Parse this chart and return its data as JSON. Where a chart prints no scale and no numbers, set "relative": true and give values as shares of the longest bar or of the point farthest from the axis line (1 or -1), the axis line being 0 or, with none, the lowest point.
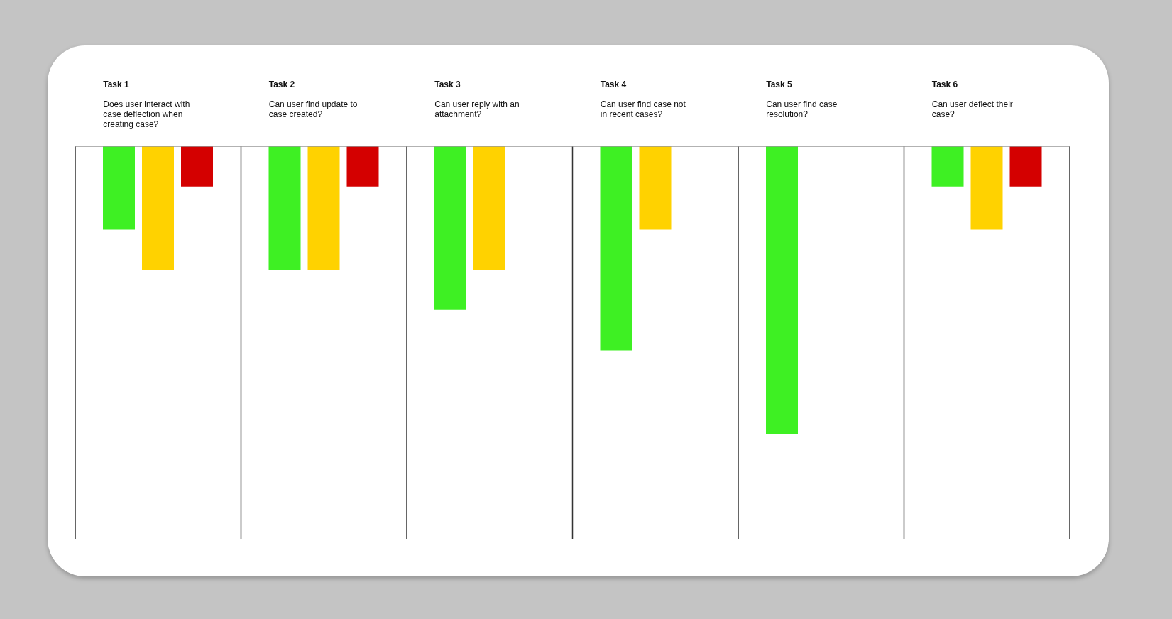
{
  "chart_data": {
    "type": "bar",
    "relative": true,
    "categories": [
      "Task 1\nDoes user interact with case deflection when creating case?",
      "Task 2\nCan user find update to case created?",
      "Task 3\nCan user reply with an attachment?",
      "Task 4\nCan user find case not in recent cases?",
      "Task 5\nCan user find case resolution?",
      "Task 6\nCan user deflect their case?"
    ],
    "series": [
      {
        "color": "#3ef023",
        "values": [
          -0.29,
          -0.43,
          -0.57,
          -0.71,
          -1,
          -0.14
        ]
      },
      {
        "color": "#ffd200",
        "values": [
          -0.43,
          -0.43,
          -0.43,
          -0.29,
          0,
          -0.29
        ]
      },
      {
        "color": "#d40000",
        "values": [
          -0.14,
          -0.14,
          0,
          0,
          0,
          -0.14
        ]
      }
    ],
    "grid": "x"
  }
}
